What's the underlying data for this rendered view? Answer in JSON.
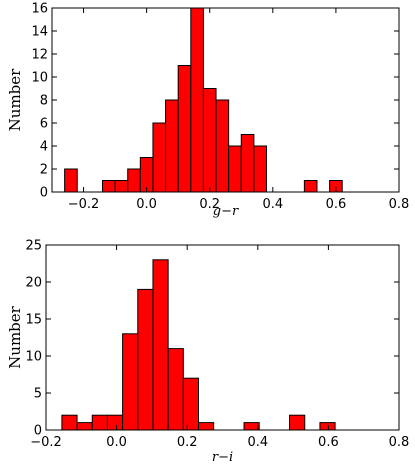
{
  "chart_data": [
    {
      "type": "bar",
      "subtype": "histogram",
      "xlabel": "g−r",
      "ylabel": "Number",
      "xlim": [
        -0.3,
        0.8
      ],
      "ylim": [
        0,
        16
      ],
      "xticks": [
        "−0.2",
        "0.0",
        "0.2",
        "0.4",
        "0.6",
        "0.8"
      ],
      "xtick_values": [
        -0.2,
        0.0,
        0.2,
        0.4,
        0.6,
        0.8
      ],
      "yticks": [
        "0",
        "2",
        "4",
        "6",
        "8",
        "10",
        "12",
        "14",
        "16"
      ],
      "ytick_values": [
        0,
        2,
        4,
        6,
        8,
        10,
        12,
        14,
        16
      ],
      "bin_edges": [
        -0.26,
        -0.22,
        -0.18,
        -0.14,
        -0.1,
        -0.06,
        -0.02,
        0.02,
        0.06,
        0.1,
        0.14,
        0.18,
        0.22,
        0.26,
        0.3,
        0.34,
        0.38,
        0.42,
        0.46,
        0.5,
        0.54,
        0.58,
        0.62,
        0.66,
        0.7,
        0.74
      ],
      "counts": [
        2,
        0,
        0,
        1,
        1,
        2,
        3,
        6,
        8,
        11,
        16,
        9,
        8,
        4,
        5,
        4,
        0,
        0,
        0,
        1,
        0,
        1,
        0,
        0,
        0
      ],
      "bar_color": "#ff0000",
      "edge_color": "#000000",
      "grid": false
    },
    {
      "type": "bar",
      "subtype": "histogram",
      "xlabel": "r−i",
      "ylabel": "Number",
      "xlim": [
        -0.2,
        0.8
      ],
      "ylim": [
        0,
        25
      ],
      "xticks": [
        "−0.2",
        "0.0",
        "0.2",
        "0.4",
        "0.6",
        "0.8"
      ],
      "xtick_values": [
        -0.2,
        0.0,
        0.2,
        0.4,
        0.6,
        0.8
      ],
      "yticks": [
        "0",
        "5",
        "10",
        "15",
        "20",
        "25"
      ],
      "ytick_values": [
        0,
        5,
        10,
        15,
        20,
        25
      ],
      "bin_edges": [
        -0.155,
        -0.112,
        -0.069,
        -0.026,
        0.017,
        0.06,
        0.103,
        0.146,
        0.189,
        0.232,
        0.275,
        0.318,
        0.361,
        0.404,
        0.447,
        0.49,
        0.533,
        0.576,
        0.619,
        0.662,
        0.705,
        0.748
      ],
      "counts": [
        2,
        1,
        2,
        2,
        13,
        19,
        23,
        11,
        7,
        1,
        0,
        0,
        1,
        0,
        0,
        2,
        0,
        1,
        0,
        0,
        0
      ],
      "bar_color": "#ff0000",
      "edge_color": "#000000",
      "grid": false
    }
  ]
}
